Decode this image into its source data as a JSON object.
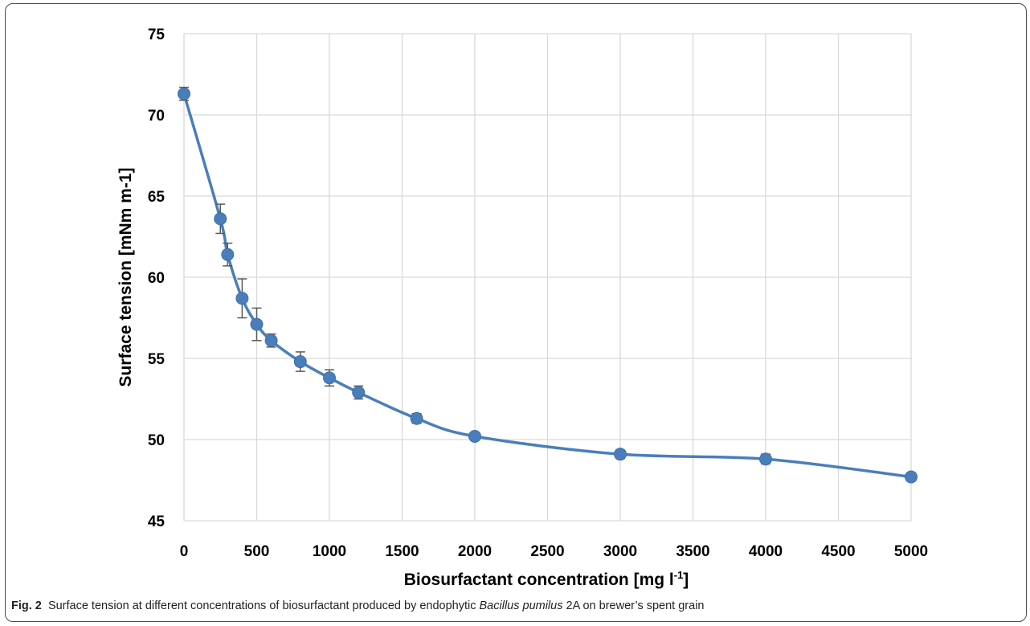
{
  "chart_data": {
    "type": "line",
    "xlabel": "Biosurfactant concentration [mg l",
    "xlabel_superscript": "-1",
    "xlabel_suffix": "]",
    "ylabel": "Surface tension [mNm m-1]",
    "xlim": [
      0,
      5000
    ],
    "ylim": [
      45,
      75
    ],
    "x_ticks": [
      "0",
      "500",
      "1000",
      "1500",
      "2000",
      "2500",
      "3000",
      "3500",
      "4000",
      "4500",
      "5000"
    ],
    "y_ticks": [
      "45",
      "50",
      "55",
      "60",
      "65",
      "70",
      "75"
    ],
    "grid": true,
    "legend": "none",
    "series_color": "#4a7ebb",
    "errorbar_color": "#595959",
    "series": [
      {
        "x": [
          0,
          250,
          300,
          400,
          500,
          600,
          800,
          1000,
          1200,
          1600,
          2000,
          3000,
          4000,
          5000
        ],
        "y": [
          71.3,
          63.6,
          61.4,
          58.7,
          57.1,
          56.1,
          54.8,
          53.8,
          52.9,
          51.3,
          50.2,
          49.1,
          48.8,
          47.7
        ],
        "err": [
          0.4,
          0.9,
          0.7,
          1.2,
          1.0,
          0.4,
          0.6,
          0.5,
          0.4,
          0.3,
          0.2,
          0.25,
          0.3,
          0.25
        ]
      }
    ]
  },
  "caption": {
    "label": "Fig. 2",
    "text_before": "Surface tension at different concentrations of biosurfactant produced by endophytic ",
    "species": "Bacillus pumilus",
    "text_after": " 2A on brewer’s spent grain"
  }
}
